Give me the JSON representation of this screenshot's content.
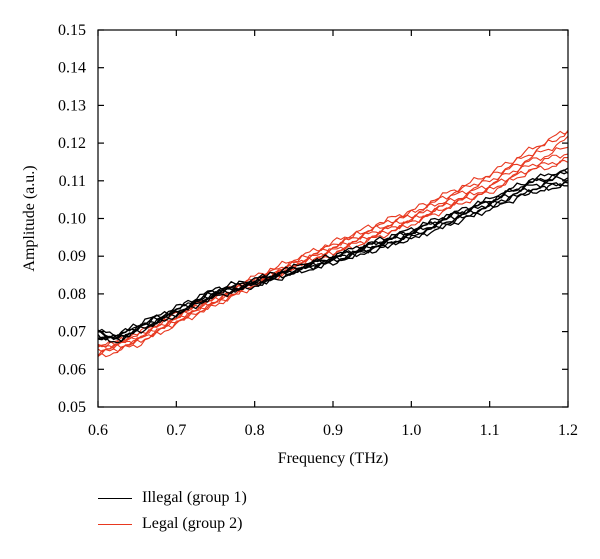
{
  "chart_data": {
    "type": "line",
    "title": "",
    "xlabel": "Frequency (THz)",
    "ylabel": "Amplitude (a.u.)",
    "xlim": [
      0.6,
      1.2
    ],
    "ylim": [
      0.05,
      0.15
    ],
    "xticks": [
      "0.6",
      "0.7",
      "0.8",
      "0.9",
      "1.0",
      "1.1",
      "1.2"
    ],
    "yticks": [
      "0.05",
      "0.06",
      "0.07",
      "0.08",
      "0.09",
      "0.10",
      "0.11",
      "0.12",
      "0.13",
      "0.14",
      "0.15"
    ],
    "x": [
      0.6,
      0.625,
      0.65,
      0.7,
      0.75,
      0.8,
      0.85,
      0.9,
      0.95,
      1.0,
      1.05,
      1.1,
      1.15,
      1.2
    ],
    "grid": false,
    "legend_position": "bottom-left",
    "series": [
      {
        "group": "illegal",
        "color": "#000000",
        "values": [
          0.07,
          0.069,
          0.0715,
          0.076,
          0.081,
          0.0835,
          0.087,
          0.09,
          0.0935,
          0.097,
          0.101,
          0.105,
          0.11,
          0.113
        ]
      },
      {
        "group": "illegal",
        "color": "#000000",
        "values": [
          0.0695,
          0.0685,
          0.0712,
          0.0755,
          0.0805,
          0.0832,
          0.0866,
          0.0895,
          0.093,
          0.0965,
          0.1005,
          0.1045,
          0.1092,
          0.112
        ]
      },
      {
        "group": "illegal",
        "color": "#000000",
        "values": [
          0.069,
          0.0682,
          0.0708,
          0.0752,
          0.0802,
          0.0828,
          0.0862,
          0.0892,
          0.0926,
          0.096,
          0.1,
          0.104,
          0.1085,
          0.111
        ]
      },
      {
        "group": "illegal",
        "color": "#000000",
        "values": [
          0.0685,
          0.0678,
          0.0704,
          0.0748,
          0.0798,
          0.0825,
          0.0858,
          0.0888,
          0.0922,
          0.0955,
          0.0995,
          0.1035,
          0.1078,
          0.11
        ]
      },
      {
        "group": "illegal",
        "color": "#000000",
        "values": [
          0.068,
          0.0675,
          0.07,
          0.0745,
          0.0795,
          0.0822,
          0.0855,
          0.0884,
          0.0918,
          0.095,
          0.099,
          0.103,
          0.1072,
          0.109
        ]
      },
      {
        "group": "illegal",
        "color": "#000000",
        "values": [
          0.0698,
          0.0688,
          0.0718,
          0.0762,
          0.0812,
          0.0838,
          0.0868,
          0.0897,
          0.0932,
          0.0968,
          0.1008,
          0.1048,
          0.1095,
          0.1125
        ]
      },
      {
        "group": "illegal",
        "color": "#000000",
        "values": [
          0.0688,
          0.068,
          0.0706,
          0.075,
          0.08,
          0.0826,
          0.086,
          0.0886,
          0.0915,
          0.0948,
          0.0985,
          0.1025,
          0.1068,
          0.1095
        ]
      },
      {
        "group": "legal",
        "color": "#e8381f",
        "values": [
          0.066,
          0.067,
          0.069,
          0.074,
          0.079,
          0.084,
          0.0885,
          0.093,
          0.0975,
          0.1015,
          0.1065,
          0.111,
          0.117,
          0.123
        ]
      },
      {
        "group": "legal",
        "color": "#e8381f",
        "values": [
          0.0655,
          0.0668,
          0.0685,
          0.0735,
          0.0785,
          0.0835,
          0.088,
          0.0925,
          0.0968,
          0.1008,
          0.1055,
          0.11,
          0.116,
          0.121
        ]
      },
      {
        "group": "legal",
        "color": "#e8381f",
        "values": [
          0.065,
          0.0665,
          0.068,
          0.0732,
          0.0782,
          0.0832,
          0.0876,
          0.092,
          0.0962,
          0.1,
          0.1045,
          0.109,
          0.115,
          0.119
        ]
      },
      {
        "group": "legal",
        "color": "#e8381f",
        "values": [
          0.0645,
          0.066,
          0.0675,
          0.0728,
          0.0778,
          0.0828,
          0.0872,
          0.0915,
          0.0955,
          0.0995,
          0.104,
          0.1082,
          0.114,
          0.1175
        ]
      },
      {
        "group": "legal",
        "color": "#e8381f",
        "values": [
          0.064,
          0.0655,
          0.0672,
          0.0725,
          0.0775,
          0.0825,
          0.0868,
          0.091,
          0.095,
          0.099,
          0.1035,
          0.1075,
          0.113,
          0.116
        ]
      },
      {
        "group": "legal",
        "color": "#e8381f",
        "values": [
          0.063,
          0.065,
          0.0665,
          0.072,
          0.0772,
          0.0822,
          0.0865,
          0.0906,
          0.0945,
          0.0985,
          0.103,
          0.107,
          0.1125,
          0.115
        ]
      },
      {
        "group": "legal",
        "color": "#e8381f",
        "values": [
          0.0665,
          0.0672,
          0.0694,
          0.0745,
          0.0795,
          0.0845,
          0.089,
          0.0936,
          0.098,
          0.102,
          0.107,
          0.1118,
          0.118,
          0.1235
        ]
      }
    ],
    "legend": [
      {
        "label": "Illegal (group 1)",
        "color": "#000000"
      },
      {
        "label": "Legal (group 2)",
        "color": "#e8381f"
      }
    ]
  }
}
